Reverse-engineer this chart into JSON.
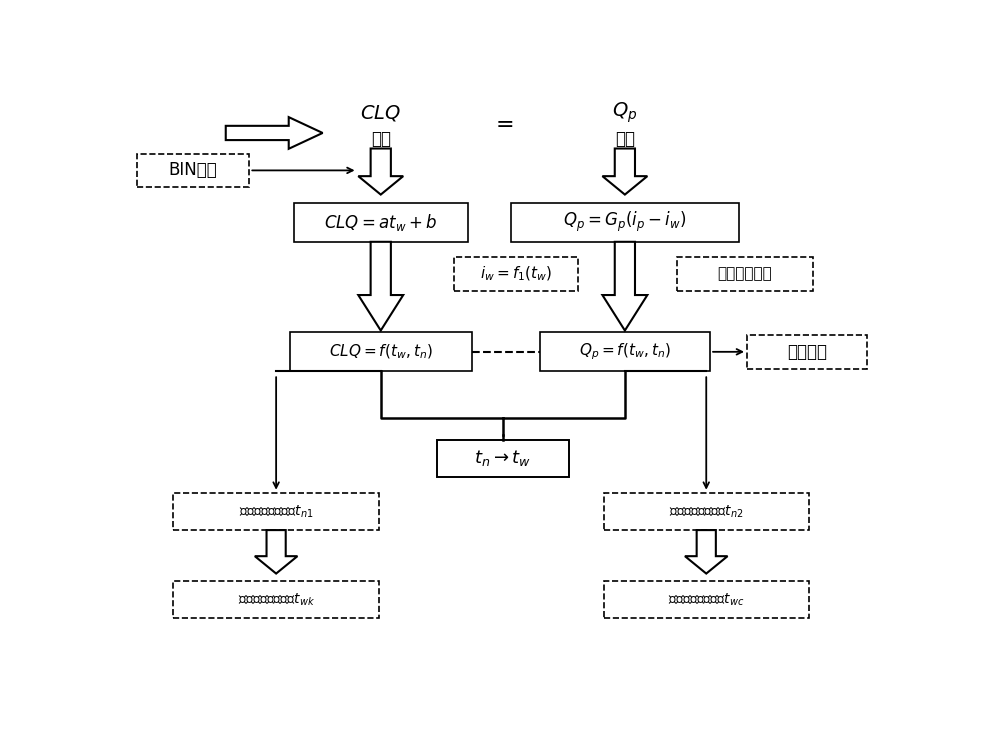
{
  "bg_color": "#ffffff",
  "clq_label": "CLQ",
  "fuhe_label": "负荷",
  "qp_label": "Qp",
  "paire_label": "排热",
  "eq_sign": "=",
  "bin_text": "BIN方法",
  "box1_left_text": "CLQ=at_w+b",
  "box1_right_text": "Q_p=G_p(i_p-i_w)",
  "iw_text": "i_w=f_1(t_w)",
  "qixiang_text": "气象参数建模",
  "box2_left_text": "CLQ=f(t_w,t_n)",
  "box2_right_text": "Q_p=f(t_w,t_n)",
  "fangcheng_text": "方程联立",
  "tn_tw_text": "t_n → t_w",
  "dongji_text": "冬季室内设定温度t_n1",
  "xiaji_text": "夏季室内设定温度t_n2",
  "guodu_xia_text": "过渡季下切换温度t_wk",
  "guodu_shang_text": "过渡季上切换温度t_wc"
}
